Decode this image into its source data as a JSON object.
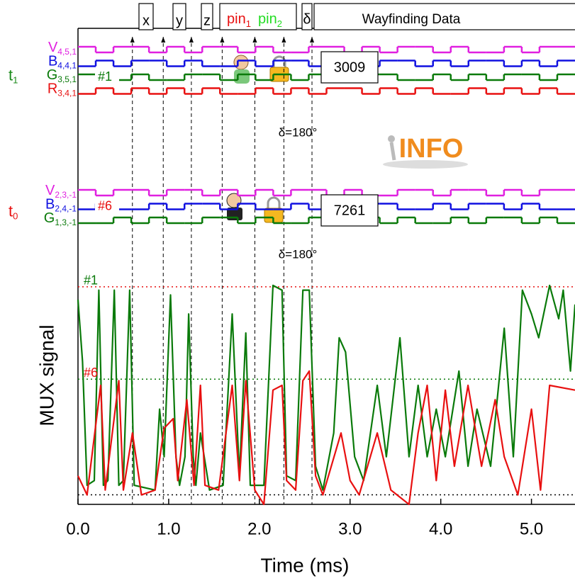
{
  "chart_data": {
    "type": "line",
    "xlabel": "Time (ms)",
    "ylabel": "MUX signal",
    "xlim": [
      0,
      5.48
    ],
    "xticks": [
      {
        "value": 0,
        "label": "0.0"
      },
      {
        "value": 1,
        "label": "1.0"
      },
      {
        "value": 2,
        "label": "2.0"
      },
      {
        "value": 3,
        "label": "3.0"
      },
      {
        "value": 4,
        "label": "4.0"
      },
      {
        "value": 5,
        "label": "5.0"
      }
    ],
    "ylim": [
      0,
      10
    ],
    "series": [
      {
        "name": "#1",
        "color": "#0a7a0a",
        "x": [
          0.0,
          0.05,
          0.1,
          0.18,
          0.23,
          0.28,
          0.33,
          0.4,
          0.45,
          0.5,
          0.57,
          0.62,
          0.85,
          0.9,
          0.95,
          1.02,
          1.08,
          1.12,
          1.18,
          1.22,
          1.27,
          1.3,
          1.35,
          1.45,
          1.6,
          1.7,
          1.78,
          1.85,
          1.9,
          2.05,
          2.15,
          2.25,
          2.3,
          2.4,
          2.48,
          2.55,
          2.62,
          2.7,
          2.82,
          2.88,
          2.95,
          3.05,
          3.15,
          3.3,
          3.4,
          3.55,
          3.65,
          3.75,
          3.85,
          3.95,
          4.05,
          4.2,
          4.3,
          4.4,
          4.55,
          4.7,
          4.8,
          4.9,
          5.0,
          5.08,
          5.2,
          5.3,
          5.35,
          5.43,
          5.48
        ],
        "values": [
          4.3,
          3.0,
          0.4,
          0.5,
          4.5,
          0.4,
          0.5,
          4.5,
          0.4,
          0.5,
          4.5,
          0.4,
          0.3,
          2.0,
          1.0,
          4.4,
          1.0,
          0.4,
          1.0,
          4.0,
          1.0,
          0.4,
          1.5,
          0.3,
          0.4,
          4.0,
          0.6,
          3.6,
          0.4,
          0.4,
          4.6,
          4.5,
          0.6,
          0.5,
          4.5,
          4.5,
          0.8,
          0.3,
          1.5,
          3.5,
          3.2,
          1.0,
          0.5,
          2.5,
          1.0,
          3.5,
          1.0,
          2.5,
          1.0,
          2.0,
          1.0,
          2.8,
          0.8,
          2.0,
          0.8,
          3.7,
          1.0,
          4.5,
          4.0,
          3.5,
          4.6,
          3.9,
          4.5,
          2.8,
          4.2
        ]
      },
      {
        "name": "#6",
        "color": "#e81010",
        "x": [
          0.0,
          0.1,
          0.25,
          0.3,
          0.45,
          0.5,
          0.6,
          0.7,
          0.85,
          0.95,
          1.05,
          1.1,
          1.2,
          1.28,
          1.35,
          1.4,
          1.55,
          1.7,
          1.78,
          1.85,
          1.95,
          2.05,
          2.15,
          2.25,
          2.3,
          2.4,
          2.48,
          2.55,
          2.62,
          2.7,
          2.9,
          3.0,
          3.1,
          3.3,
          3.45,
          3.65,
          3.75,
          3.85,
          3.95,
          4.05,
          4.15,
          4.3,
          4.45,
          4.6,
          4.7,
          4.85,
          5.0,
          5.1,
          5.2,
          5.48
        ],
        "values": [
          0.6,
          0.2,
          2.5,
          0.3,
          2.6,
          0.3,
          1.5,
          0.2,
          0.3,
          1.6,
          1.8,
          0.5,
          2.2,
          0.4,
          2.5,
          0.4,
          0.3,
          2.5,
          0.5,
          2.6,
          0.3,
          0.0,
          2.4,
          2.5,
          0.5,
          0.3,
          2.6,
          2.8,
          0.6,
          0.2,
          1.5,
          0.5,
          0.2,
          1.5,
          0.3,
          0.0,
          1.5,
          2.5,
          0.5,
          2.4,
          0.8,
          2.5,
          0.8,
          2.2,
          1.0,
          0.2,
          2.0,
          0.3,
          2.5,
          2.4
        ]
      }
    ],
    "reference_lines": [
      {
        "value": 4.57,
        "color": "#e81010"
      },
      {
        "value": 2.63,
        "color": "#0a7a0a"
      },
      {
        "value": 0.2,
        "color": "#000000"
      }
    ],
    "dashed_markers": [
      0.6,
      0.94,
      1.25,
      1.59,
      1.95,
      2.27,
      2.58
    ],
    "header": {
      "x": "x",
      "y": "y",
      "z": "z",
      "pin1": {
        "text": "pin",
        "sub": "1"
      },
      "pin2": {
        "text": "pin",
        "sub": "2"
      },
      "delta": "δ",
      "wayfinding": "Wayfinding Data"
    },
    "logo": "INFO",
    "digital_groups": [
      {
        "time": {
          "text": "t",
          "sub": "1"
        },
        "color": "#1a8a1a",
        "code": "3009",
        "phase": "δ=180°",
        "traces": [
          {
            "letter": "V",
            "index": "4,5,1",
            "color": "#e020e0",
            "bits": [
              1,
              0,
              1,
              1,
              0,
              1,
              0,
              1,
              1,
              0,
              1,
              0,
              0,
              1,
              1,
              0,
              1,
              0,
              1,
              1,
              0,
              1,
              0,
              0,
              1,
              0,
              1,
              1
            ]
          },
          {
            "letter": "B",
            "index": "4,4,1",
            "color": "#1010e0",
            "bits": [
              0,
              1,
              0,
              1,
              1,
              0,
              1,
              0,
              0,
              1,
              0,
              1,
              1,
              0,
              1,
              0,
              0,
              1,
              1,
              0,
              1,
              0,
              1,
              1,
              0,
              1,
              0,
              1
            ]
          },
          {
            "letter": "G",
            "index": "3,5,1",
            "color": "#0a7a0a",
            "bits": [
              1,
              1,
              0,
              1,
              0,
              0,
              1,
              1,
              0,
              1,
              0,
              1,
              0,
              1,
              1,
              0,
              1,
              1,
              0,
              0,
              1,
              0,
              1,
              0,
              1,
              1,
              0,
              1
            ]
          },
          {
            "letter": "R",
            "index": "3,4,1",
            "color": "#e81010",
            "bits": [
              0,
              1,
              0,
              1,
              0,
              1,
              0,
              1,
              0,
              0,
              1,
              0,
              1,
              0,
              1,
              1,
              0,
              1,
              0,
              1,
              0,
              0,
              1,
              0,
              1,
              0,
              1,
              0
            ]
          }
        ]
      },
      {
        "time": {
          "text": "t",
          "sub": "0"
        },
        "color": "#e81010",
        "code": "7261",
        "phase": "δ=180°",
        "traces": [
          {
            "letter": "V",
            "index": "2,3,-1",
            "color": "#e020e0",
            "bits": [
              1,
              0,
              1,
              1,
              0,
              1,
              1,
              0,
              1,
              0,
              1,
              0,
              1,
              1,
              0,
              1,
              0,
              0,
              1,
              1,
              0,
              1,
              1,
              0,
              1,
              0,
              1,
              1
            ]
          },
          {
            "letter": "B",
            "index": "2,4,-1",
            "color": "#1010e0",
            "bits": [
              0,
              1,
              0,
              0,
              1,
              0,
              1,
              1,
              0,
              1,
              0,
              0,
              1,
              0,
              1,
              0,
              1,
              1,
              0,
              0,
              1,
              0,
              1,
              1,
              0,
              1,
              0,
              0
            ]
          },
          {
            "letter": "G",
            "index": "1,3,-1",
            "color": "#0a7a0a",
            "bits": [
              0,
              0,
              1,
              0,
              1,
              0,
              0,
              1,
              1,
              0,
              1,
              0,
              0,
              1,
              0,
              1,
              1,
              0,
              1,
              0,
              0,
              1,
              0,
              1,
              1,
              0,
              1,
              0
            ]
          }
        ]
      }
    ]
  }
}
